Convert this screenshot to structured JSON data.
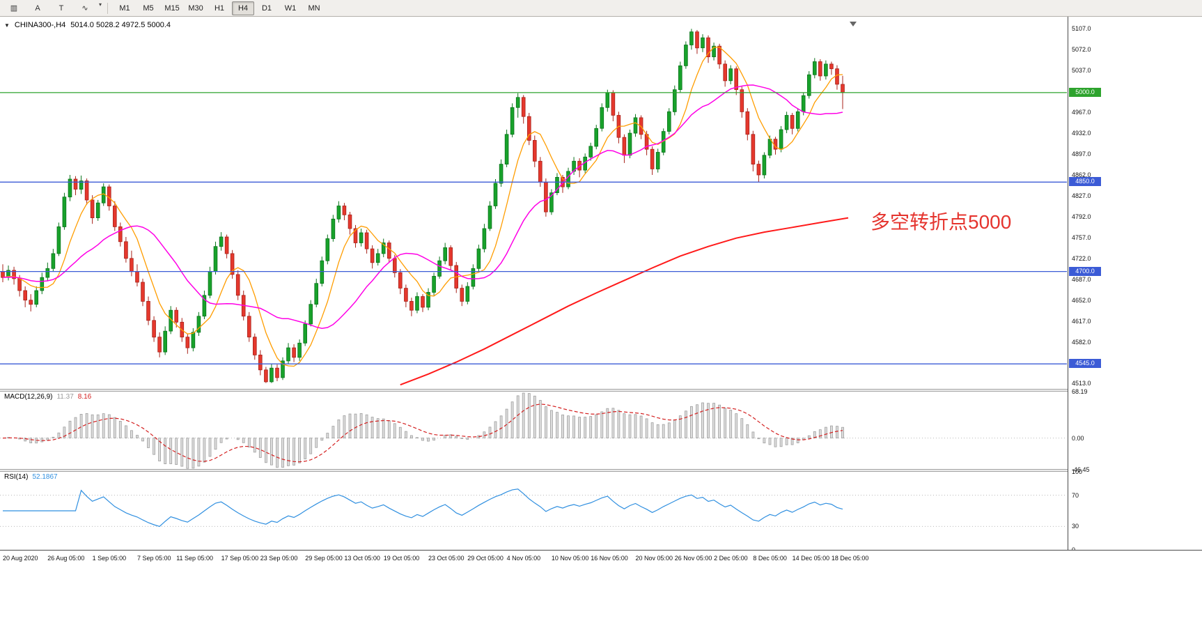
{
  "toolbar": {
    "icons": [
      {
        "name": "chart-list-icon",
        "glyph": "▥"
      },
      {
        "name": "cursor-text-icon",
        "glyph": "A"
      },
      {
        "name": "text-label-icon",
        "glyph": "T"
      },
      {
        "name": "indicators-icon",
        "glyph": "∿"
      }
    ],
    "dropdown_caret": "▾",
    "timeframes": [
      "M1",
      "M5",
      "M15",
      "M30",
      "H1",
      "H4",
      "D1",
      "W1",
      "MN"
    ],
    "active_timeframe": "H4"
  },
  "chart": {
    "menu_icon": "▼",
    "title_symbol": "CHINA300-,H4",
    "title_ohlc": "5014.0 5028.2 4972.5 5000.4",
    "annotation": {
      "text": "多空转折点5000"
    },
    "shift_marker": "▼"
  },
  "macd": {
    "label": "MACD(12,26,9)",
    "main_value": "11.37",
    "signal_value": "8.16",
    "axis_labels": [
      "68.19",
      "0.00",
      "-46.45"
    ],
    "range_max": 68.19,
    "range_min": -46.45
  },
  "rsi": {
    "label": "RSI(14)",
    "value": "52.1867",
    "axis_labels": [
      "100",
      "70",
      "30",
      "0"
    ],
    "levels": [
      70,
      30
    ]
  },
  "price_axis": {
    "ticks": [
      "5107.0",
      "5072.0",
      "5037.0",
      "4967.0",
      "4932.0",
      "4897.0",
      "4862.0",
      "4827.0",
      "4792.0",
      "4757.0",
      "4722.0",
      "4687.0",
      "4652.0",
      "4617.0",
      "4582.0",
      "4513.0"
    ]
  },
  "time_axis": {
    "labels": [
      [
        "20 Aug 2020",
        0
      ],
      [
        "26 Aug 05:00",
        8
      ],
      [
        "1 Sep 05:00",
        16
      ],
      [
        "7 Sep 05:00",
        24
      ],
      [
        "11 Sep 05:00",
        31
      ],
      [
        "17 Sep 05:00",
        39
      ],
      [
        "23 Sep 05:00",
        46
      ],
      [
        "29 Sep 05:00",
        54
      ],
      [
        "13 Oct 05:00",
        61
      ],
      [
        "19 Oct 05:00",
        68
      ],
      [
        "23 Oct 05:00",
        76
      ],
      [
        "29 Oct 05:00",
        83
      ],
      [
        "4 Nov 05:00",
        90
      ],
      [
        "10 Nov 05:00",
        98
      ],
      [
        "16 Nov 05:00",
        105
      ],
      [
        "20 Nov 05:00",
        113
      ],
      [
        "26 Nov 05:00",
        120
      ],
      [
        "2 Dec 05:00",
        127
      ],
      [
        "8 Dec 05:00",
        134
      ],
      [
        "14 Dec 05:00",
        141
      ],
      [
        "18 Dec 05:00",
        148
      ]
    ]
  },
  "colors": {
    "up": "#18a22b",
    "up_border": "#0b741c",
    "down": "#e5382d",
    "down_border": "#a8221a",
    "ma_fast": "#ff9d00",
    "ma_mid": "#ff00e6",
    "ma_long": "#ff1a1a",
    "hline_green": "#2da32d",
    "hline_blue": "#3b5bd6",
    "macd_bar_fill": "#dcdcdc",
    "macd_bar_stroke": "#9f9f9f",
    "macd_signal": "#d42020",
    "rsi_line": "#2f8fe0",
    "level_dots": "#b8b8b8",
    "annotation": "#e5342e"
  },
  "chart_data": {
    "type": "candlestick",
    "symbol": "CHINA300-",
    "timeframe": "H4",
    "last_bar": {
      "open": 5014.0,
      "high": 5028.2,
      "low": 4972.5,
      "close": 5000.4
    },
    "ylim": [
      4502,
      5125
    ],
    "hlines": [
      {
        "price": 5000,
        "badge_text": "5000.0",
        "style": "green"
      },
      {
        "price": 4850,
        "badge_text": "4850.0",
        "style": "blue"
      },
      {
        "price": 4700,
        "badge_text": "4700.0",
        "style": "blue"
      },
      {
        "price": 4545,
        "badge_text": "4545.0",
        "style": "blue"
      }
    ],
    "candles": [
      [
        4700,
        4712,
        4682,
        4690
      ],
      [
        4690,
        4710,
        4685,
        4702
      ],
      [
        4702,
        4708,
        4678,
        4688
      ],
      [
        4688,
        4694,
        4658,
        4668
      ],
      [
        4668,
        4675,
        4640,
        4652
      ],
      [
        4652,
        4662,
        4633,
        4645
      ],
      [
        4645,
        4675,
        4640,
        4668
      ],
      [
        4668,
        4698,
        4662,
        4690
      ],
      [
        4690,
        4715,
        4684,
        4705
      ],
      [
        4705,
        4738,
        4700,
        4730
      ],
      [
        4730,
        4782,
        4726,
        4775
      ],
      [
        4775,
        4832,
        4770,
        4825
      ],
      [
        4825,
        4862,
        4818,
        4855
      ],
      [
        4855,
        4860,
        4828,
        4838
      ],
      [
        4838,
        4861,
        4830,
        4852
      ],
      [
        4852,
        4856,
        4812,
        4820
      ],
      [
        4820,
        4828,
        4780,
        4790
      ],
      [
        4790,
        4820,
        4785,
        4815
      ],
      [
        4815,
        4848,
        4810,
        4842
      ],
      [
        4842,
        4846,
        4802,
        4810
      ],
      [
        4810,
        4818,
        4768,
        4775
      ],
      [
        4775,
        4782,
        4742,
        4750
      ],
      [
        4750,
        4758,
        4715,
        4722
      ],
      [
        4722,
        4735,
        4692,
        4700
      ],
      [
        4700,
        4712,
        4675,
        4682
      ],
      [
        4682,
        4688,
        4642,
        4650
      ],
      [
        4650,
        4658,
        4610,
        4618
      ],
      [
        4618,
        4625,
        4582,
        4590
      ],
      [
        4590,
        4598,
        4556,
        4565
      ],
      [
        4565,
        4608,
        4560,
        4600
      ],
      [
        4600,
        4642,
        4595,
        4635
      ],
      [
        4635,
        4640,
        4606,
        4615
      ],
      [
        4615,
        4622,
        4582,
        4590
      ],
      [
        4590,
        4596,
        4562,
        4572
      ],
      [
        4572,
        4605,
        4566,
        4598
      ],
      [
        4598,
        4632,
        4592,
        4625
      ],
      [
        4625,
        4668,
        4620,
        4660
      ],
      [
        4660,
        4708,
        4655,
        4700
      ],
      [
        4700,
        4750,
        4695,
        4742
      ],
      [
        4742,
        4766,
        4735,
        4758
      ],
      [
        4758,
        4762,
        4722,
        4730
      ],
      [
        4730,
        4736,
        4688,
        4695
      ],
      [
        4695,
        4702,
        4652,
        4660
      ],
      [
        4660,
        4668,
        4618,
        4625
      ],
      [
        4625,
        4632,
        4582,
        4590
      ],
      [
        4590,
        4596,
        4552,
        4560
      ],
      [
        4560,
        4568,
        4526,
        4535
      ],
      [
        4535,
        4540,
        4513,
        4515
      ],
      [
        4515,
        4545,
        4513,
        4538
      ],
      [
        4538,
        4544,
        4516,
        4522
      ],
      [
        4522,
        4556,
        4518,
        4550
      ],
      [
        4550,
        4580,
        4545,
        4572
      ],
      [
        4572,
        4578,
        4548,
        4556
      ],
      [
        4556,
        4586,
        4550,
        4580
      ],
      [
        4580,
        4618,
        4575,
        4612
      ],
      [
        4612,
        4652,
        4608,
        4645
      ],
      [
        4645,
        4688,
        4640,
        4680
      ],
      [
        4680,
        4725,
        4675,
        4718
      ],
      [
        4718,
        4762,
        4712,
        4755
      ],
      [
        4755,
        4795,
        4750,
        4788
      ],
      [
        4788,
        4818,
        4782,
        4810
      ],
      [
        4810,
        4815,
        4786,
        4795
      ],
      [
        4795,
        4800,
        4762,
        4772
      ],
      [
        4772,
        4778,
        4740,
        4748
      ],
      [
        4748,
        4772,
        4742,
        4765
      ],
      [
        4765,
        4770,
        4730,
        4738
      ],
      [
        4738,
        4744,
        4705,
        4715
      ],
      [
        4715,
        4738,
        4710,
        4730
      ],
      [
        4730,
        4755,
        4724,
        4748
      ],
      [
        4748,
        4752,
        4715,
        4722
      ],
      [
        4722,
        4728,
        4690,
        4698
      ],
      [
        4698,
        4704,
        4662,
        4672
      ],
      [
        4672,
        4678,
        4640,
        4650
      ],
      [
        4650,
        4656,
        4625,
        4635
      ],
      [
        4635,
        4665,
        4630,
        4658
      ],
      [
        4658,
        4662,
        4632,
        4640
      ],
      [
        4640,
        4672,
        4635,
        4665
      ],
      [
        4665,
        4698,
        4660,
        4692
      ],
      [
        4692,
        4725,
        4688,
        4718
      ],
      [
        4718,
        4748,
        4712,
        4740
      ],
      [
        4740,
        4744,
        4702,
        4710
      ],
      [
        4710,
        4716,
        4664,
        4672
      ],
      [
        4672,
        4678,
        4642,
        4650
      ],
      [
        4650,
        4682,
        4645,
        4675
      ],
      [
        4675,
        4712,
        4670,
        4705
      ],
      [
        4705,
        4745,
        4700,
        4738
      ],
      [
        4738,
        4780,
        4732,
        4772
      ],
      [
        4772,
        4818,
        4768,
        4810
      ],
      [
        4810,
        4855,
        4805,
        4848
      ],
      [
        4848,
        4888,
        4842,
        4880
      ],
      [
        4880,
        4938,
        4875,
        4930
      ],
      [
        4930,
        4982,
        4925,
        4975
      ],
      [
        4975,
        4999,
        4958,
        4992
      ],
      [
        4992,
        4996,
        4948,
        4960
      ],
      [
        4960,
        4966,
        4912,
        4920
      ],
      [
        4920,
        4928,
        4875,
        4885
      ],
      [
        4885,
        4892,
        4842,
        4850
      ],
      [
        4850,
        4856,
        4792,
        4800
      ],
      [
        4800,
        4838,
        4795,
        4832
      ],
      [
        4832,
        4865,
        4828,
        4858
      ],
      [
        4858,
        4862,
        4832,
        4842
      ],
      [
        4842,
        4874,
        4838,
        4868
      ],
      [
        4868,
        4892,
        4862,
        4885
      ],
      [
        4885,
        4890,
        4858,
        4870
      ],
      [
        4870,
        4898,
        4865,
        4892
      ],
      [
        4892,
        4916,
        4886,
        4910
      ],
      [
        4910,
        4946,
        4905,
        4940
      ],
      [
        4940,
        4982,
        4935,
        4975
      ],
      [
        4975,
        5005,
        4968,
        5000
      ],
      [
        5000,
        5004,
        4952,
        4962
      ],
      [
        4962,
        4968,
        4915,
        4925
      ],
      [
        4925,
        4930,
        4882,
        4895
      ],
      [
        4895,
        4938,
        4890,
        4932
      ],
      [
        4932,
        4964,
        4926,
        4958
      ],
      [
        4958,
        4962,
        4922,
        4930
      ],
      [
        4930,
        4936,
        4895,
        4905
      ],
      [
        4905,
        4910,
        4862,
        4872
      ],
      [
        4872,
        4906,
        4866,
        4900
      ],
      [
        4900,
        4940,
        4895,
        4935
      ],
      [
        4935,
        4974,
        4930,
        4968
      ],
      [
        4968,
        5012,
        4962,
        5005
      ],
      [
        5005,
        5052,
        5000,
        5045
      ],
      [
        5045,
        5086,
        5040,
        5080
      ],
      [
        5080,
        5107,
        5072,
        5102
      ],
      [
        5102,
        5105,
        5065,
        5075
      ],
      [
        5075,
        5098,
        5068,
        5092
      ],
      [
        5092,
        5096,
        5050,
        5060
      ],
      [
        5060,
        5084,
        5054,
        5078
      ],
      [
        5078,
        5082,
        5040,
        5048
      ],
      [
        5048,
        5054,
        5010,
        5020
      ],
      [
        5020,
        5046,
        5014,
        5040
      ],
      [
        5040,
        5044,
        4996,
        5005
      ],
      [
        5005,
        5010,
        4958,
        4968
      ],
      [
        4968,
        4974,
        4920,
        4930
      ],
      [
        4930,
        4936,
        4868,
        4880
      ],
      [
        4880,
        4886,
        4850,
        4862
      ],
      [
        4862,
        4900,
        4856,
        4895
      ],
      [
        4895,
        4928,
        4890,
        4922
      ],
      [
        4922,
        4926,
        4896,
        4905
      ],
      [
        4905,
        4944,
        4900,
        4938
      ],
      [
        4938,
        4968,
        4932,
        4962
      ],
      [
        4962,
        4966,
        4930,
        4940
      ],
      [
        4940,
        4974,
        4935,
        4968
      ],
      [
        4968,
        5000,
        4962,
        4995
      ],
      [
        4995,
        5036,
        4990,
        5030
      ],
      [
        5030,
        5058,
        5024,
        5052
      ],
      [
        5052,
        5056,
        5020,
        5028
      ],
      [
        5028,
        5054,
        5022,
        5048
      ],
      [
        5048,
        5052,
        5030,
        5040
      ],
      [
        5040,
        5046,
        5005,
        5014
      ],
      [
        5014,
        5028.2,
        4972.5,
        5000.4
      ]
    ],
    "ma_long_anchors": [
      [
        71,
        4510
      ],
      [
        76,
        4528
      ],
      [
        81,
        4548
      ],
      [
        86,
        4570
      ],
      [
        91,
        4594
      ],
      [
        96,
        4618
      ],
      [
        101,
        4642
      ],
      [
        106,
        4664
      ],
      [
        111,
        4685
      ],
      [
        116,
        4706
      ],
      [
        121,
        4726
      ],
      [
        126,
        4742
      ],
      [
        131,
        4756
      ],
      [
        136,
        4766
      ],
      [
        141,
        4774
      ],
      [
        146,
        4782
      ],
      [
        151,
        4790
      ]
    ],
    "indicators": {
      "macd_params": [
        12,
        26,
        9
      ],
      "macd_axis": [
        68.19,
        0.0,
        -46.45
      ],
      "rsi_params": [
        14
      ],
      "rsi_value": 52.1867,
      "rsi_levels": [
        70,
        30
      ]
    }
  }
}
